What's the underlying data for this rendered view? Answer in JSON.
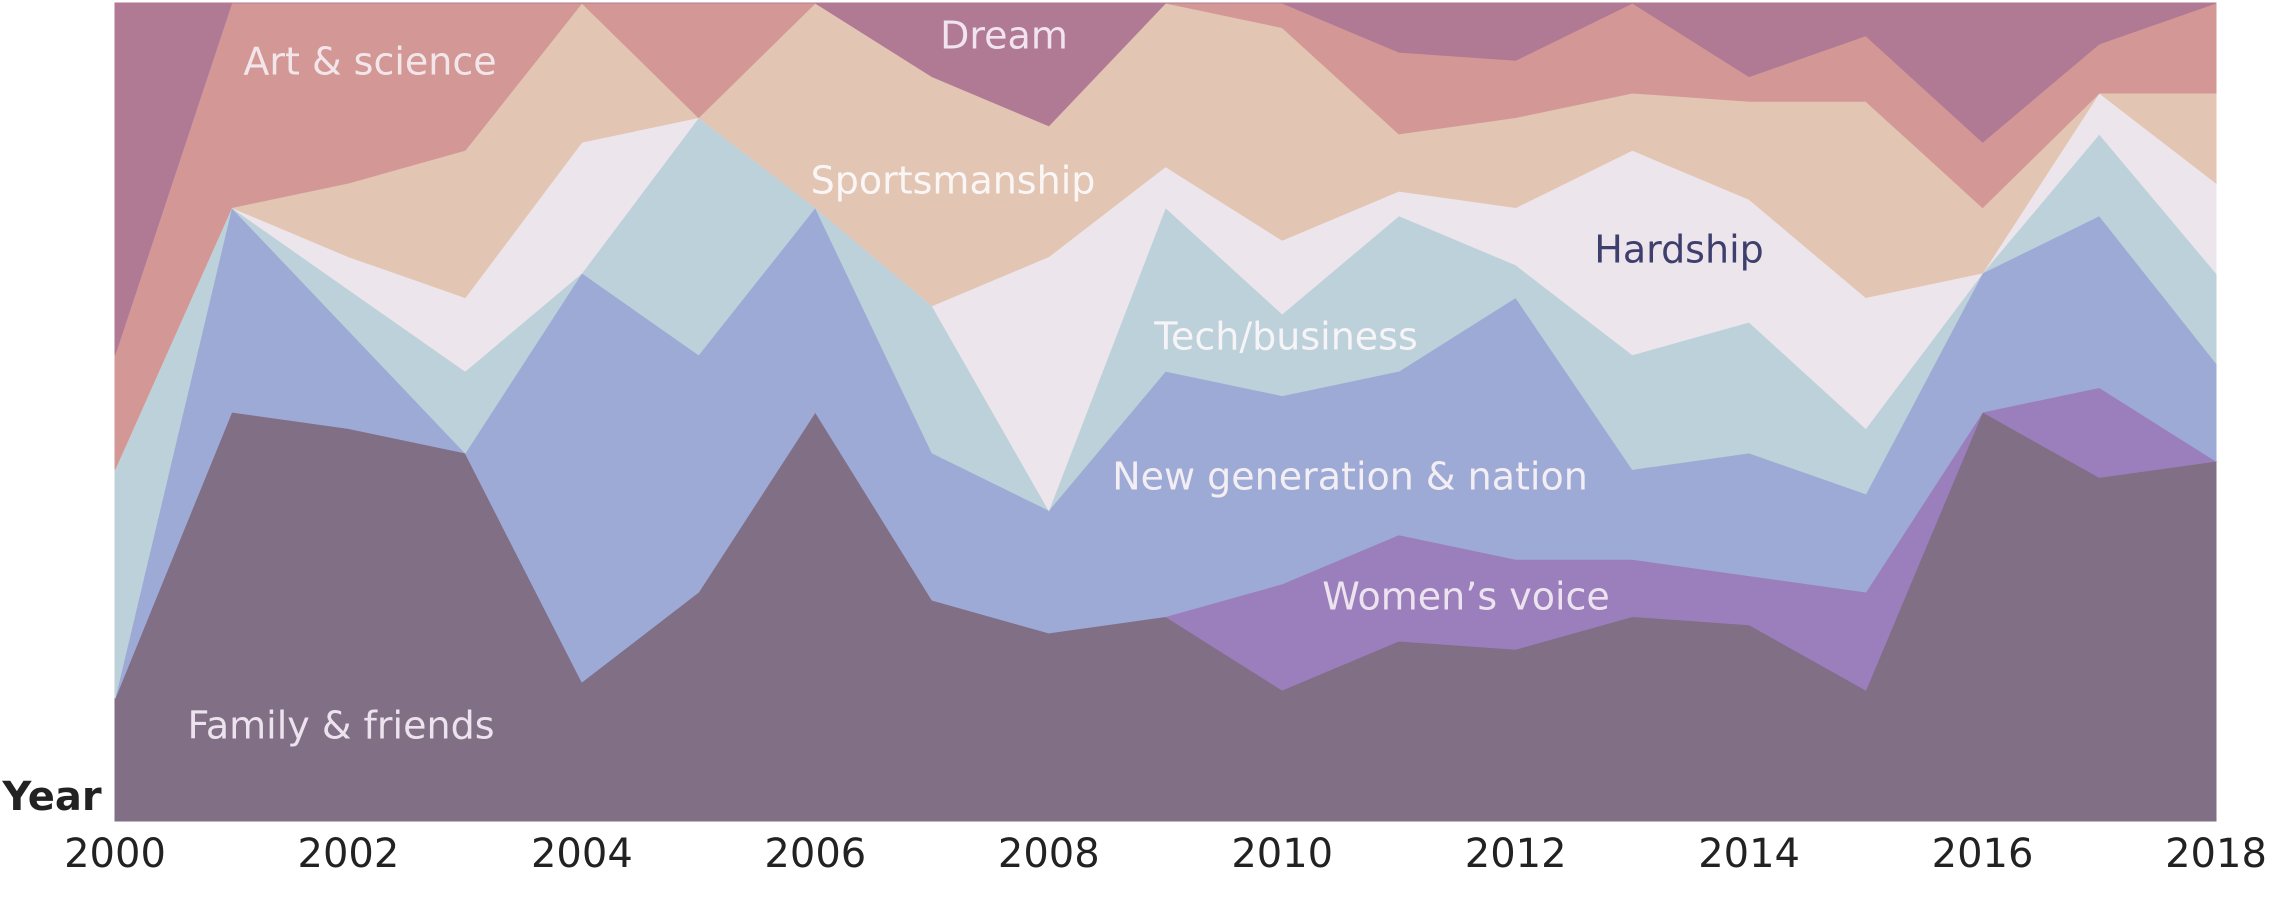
{
  "chart_data": {
    "type": "stacked-area",
    "x_label": "Year",
    "x": [
      2000,
      2001,
      2002,
      2003,
      2004,
      2005,
      2006,
      2007,
      2008,
      2009,
      2010,
      2011,
      2012,
      2013,
      2014,
      2015,
      2016,
      2017,
      2018
    ],
    "xlim": [
      2000,
      2018
    ],
    "xticks": [
      2000,
      2002,
      2004,
      2006,
      2008,
      2010,
      2012,
      2014,
      2016,
      2018
    ],
    "ylim": [
      0,
      100
    ],
    "series": [
      {
        "name": "Family & friends",
        "color": "#806f85",
        "values": [
          15,
          50,
          48,
          45,
          17,
          28,
          50,
          27,
          23,
          25,
          16,
          22,
          21,
          25,
          24,
          16,
          50,
          42,
          44
        ]
      },
      {
        "name": "Women’s voice",
        "color": "#9b7fbd",
        "values": [
          0,
          0,
          0,
          0,
          0,
          0,
          0,
          0,
          0,
          0,
          13,
          13,
          11,
          7,
          6,
          12,
          0,
          11,
          0
        ]
      },
      {
        "name": "New generation & nation",
        "color": "#9eaad6",
        "values": [
          0,
          25,
          12,
          0,
          50,
          29,
          25,
          18,
          15,
          30,
          23,
          20,
          32,
          11,
          15,
          12,
          17,
          21,
          12
        ]
      },
      {
        "name": "Tech/business",
        "color": "#bdd1da",
        "values": [
          28,
          0,
          5,
          10,
          0,
          29,
          0,
          18,
          0,
          20,
          10,
          19,
          4,
          14,
          16,
          8,
          0,
          10,
          11
        ]
      },
      {
        "name": "Hardship",
        "color": "#ede5ec",
        "values": [
          0,
          0,
          4,
          9,
          16,
          0,
          0,
          0,
          31,
          5,
          9,
          3,
          7,
          25,
          15,
          16,
          0,
          5,
          11
        ]
      },
      {
        "name": "Sportsmanship",
        "color": "#e3c5b4",
        "values": [
          0,
          0,
          9,
          18,
          17,
          0,
          25,
          28,
          16,
          20,
          26,
          7,
          11,
          7,
          12,
          24,
          8,
          0,
          11
        ]
      },
      {
        "name": "Art & science",
        "color": "#d39896",
        "values": [
          14,
          25,
          22,
          18,
          0,
          14,
          0,
          0,
          0,
          0,
          3,
          10,
          7,
          11,
          3,
          8,
          8,
          6,
          11
        ]
      },
      {
        "name": "Dream",
        "color": "#b07a95",
        "values": [
          43,
          0,
          0,
          0,
          0,
          0,
          0,
          9,
          15,
          0,
          0,
          6,
          7,
          0,
          9,
          4,
          17,
          5,
          0
        ]
      }
    ]
  }
}
